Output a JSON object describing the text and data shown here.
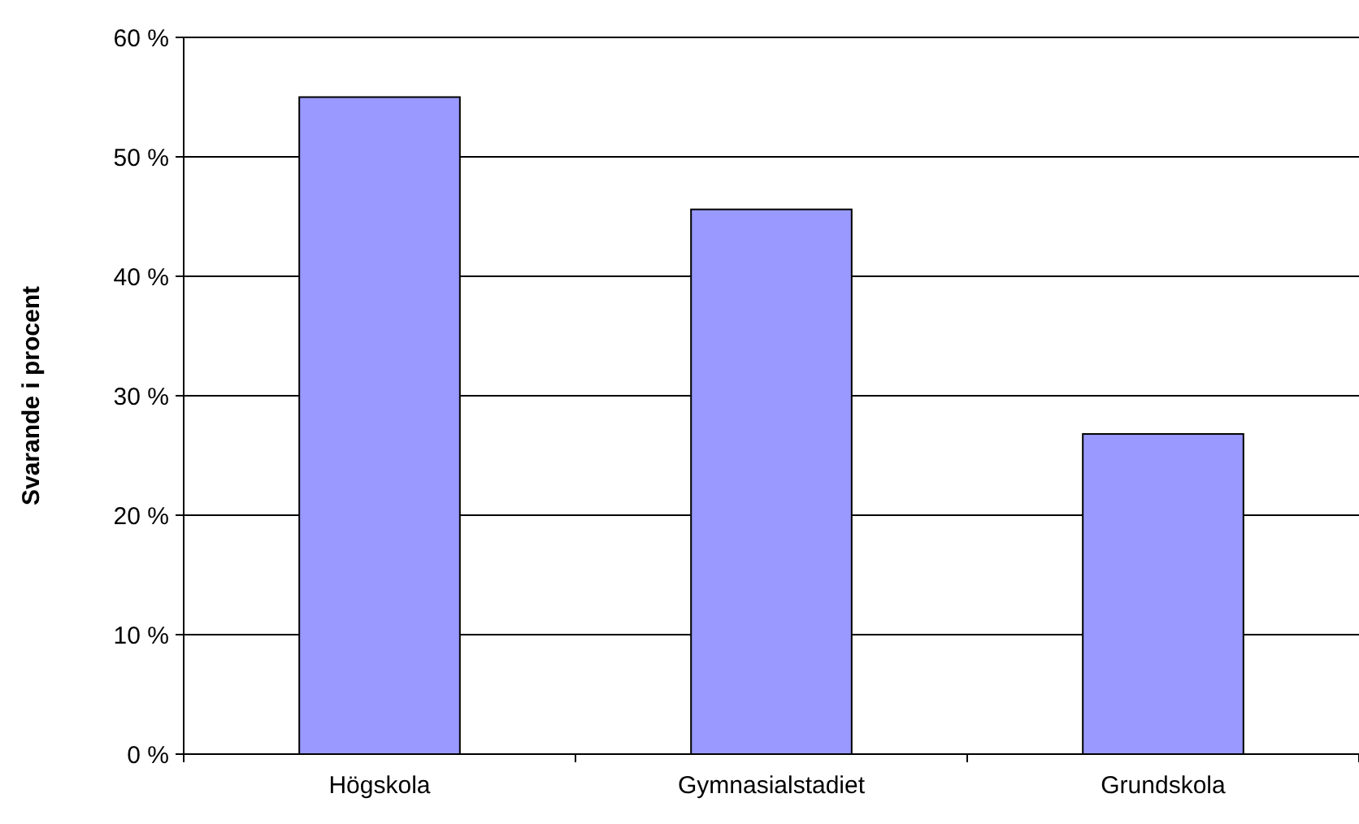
{
  "chart_data": {
    "type": "bar",
    "ylabel": "Svarande i procent",
    "categories": [
      "Högskola",
      "Gymnasialstadiet",
      "Grundskola"
    ],
    "values": [
      55.0,
      45.6,
      26.8
    ],
    "color": "#9999ff",
    "ylim": [
      0,
      60
    ],
    "yticks": [
      {
        "value": 0,
        "label": "0 %"
      },
      {
        "value": 10,
        "label": "10 %"
      },
      {
        "value": 20,
        "label": "20 %"
      },
      {
        "value": 30,
        "label": "30 %"
      },
      {
        "value": 40,
        "label": "40 %"
      },
      {
        "value": 50,
        "label": "50 %"
      },
      {
        "value": 60,
        "label": "60 %"
      }
    ],
    "grid": "y"
  }
}
